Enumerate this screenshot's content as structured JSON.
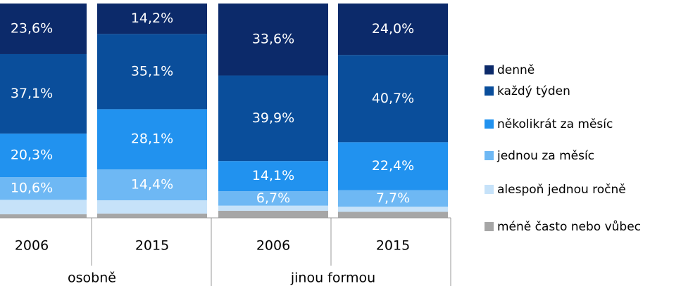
{
  "chart_data": {
    "type": "stacked_bar",
    "categories": [
      "2006",
      "2015",
      "2006",
      "2015"
    ],
    "groups": [
      {
        "label": "osobně",
        "span": 2
      },
      {
        "label": "jinou formou",
        "span": 2
      }
    ],
    "ylim": [
      0,
      100
    ],
    "series": [
      {
        "name": "méně často nebo vůbec",
        "color": "#a6a6a6",
        "values": [
          1.7,
          2.0,
          3.3,
          2.8
        ]
      },
      {
        "name": "alespoň jednou ročně",
        "color": "#c6e2f9",
        "values": [
          6.7,
          6.2,
          2.4,
          2.4
        ]
      },
      {
        "name": "jednou za měsíc",
        "color": "#6eb8f4",
        "values": [
          10.6,
          14.4,
          6.7,
          7.7
        ],
        "value_labels": [
          "10,6%",
          "14,4%",
          "6,7%",
          "7,7%"
        ]
      },
      {
        "name": "několikrát za měsíc",
        "color": "#2192ef",
        "values": [
          20.3,
          28.1,
          14.1,
          22.4
        ],
        "value_labels": [
          "20,3%",
          "28,1%",
          "14,1%",
          "22,4%"
        ]
      },
      {
        "name": "každý týden",
        "color": "#0a4e9b",
        "values": [
          37.1,
          35.1,
          39.9,
          40.7
        ],
        "value_labels": [
          "37,1%",
          "35,1%",
          "39,9%",
          "40,7%"
        ]
      },
      {
        "name": "denně",
        "color": "#0c2a6a",
        "values": [
          23.6,
          14.2,
          33.6,
          24.0
        ],
        "value_labels": [
          "23,6%",
          "14,2%",
          "33,6%",
          "24,0%"
        ]
      }
    ]
  }
}
